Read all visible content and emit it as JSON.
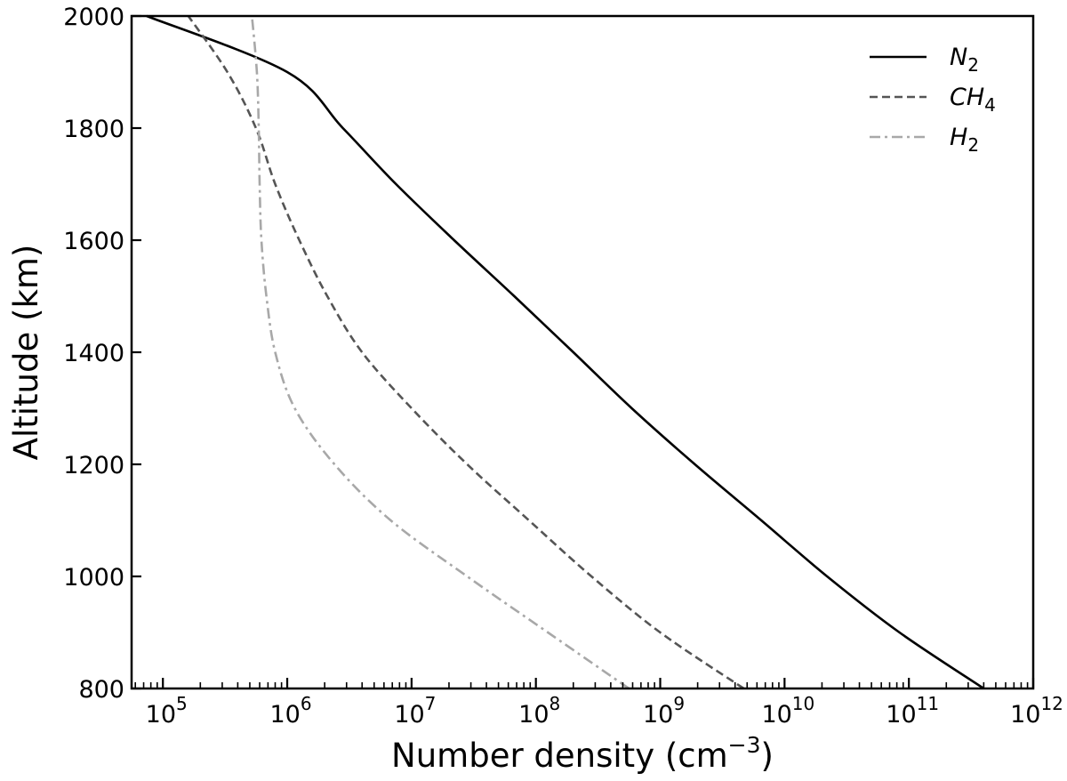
{
  "chart_data": {
    "type": "line",
    "xlabel": "Number density (cm",
    "xlabel_exponent": "−3",
    "xlabel_suffix": ")",
    "ylabel": "Altitude (km)",
    "x_scale": "log",
    "xlim": [
      56000,
      1000000000000
    ],
    "ylim": [
      800,
      2000
    ],
    "grid": false,
    "legend_position": "top-right",
    "y_ticks": [
      800,
      1000,
      1200,
      1400,
      1600,
      1800,
      2000
    ],
    "y_tick_labels": [
      "800",
      "1000",
      "1200",
      "1400",
      "1600",
      "1800",
      "2000"
    ],
    "x_major_ticks": [
      100000,
      1000000,
      10000000,
      100000000,
      1000000000,
      10000000000,
      100000000000,
      1000000000000
    ],
    "x_tick_labels": [
      {
        "base": "10",
        "exp": "5"
      },
      {
        "base": "10",
        "exp": "6"
      },
      {
        "base": "10",
        "exp": "7"
      },
      {
        "base": "10",
        "exp": "8"
      },
      {
        "base": "10",
        "exp": "9"
      },
      {
        "base": "10",
        "exp": "10"
      },
      {
        "base": "10",
        "exp": "11"
      },
      {
        "base": "10",
        "exp": "12"
      }
    ],
    "series": [
      {
        "name": "N",
        "name_sub": "2",
        "style": "solid",
        "color": "#000000",
        "points": [
          [
            400000000000,
            800
          ],
          [
            84000000000,
            900
          ],
          [
            22000000000,
            1000
          ],
          [
            6500000000,
            1100
          ],
          [
            1900000000,
            1200
          ],
          [
            590000000,
            1300
          ],
          [
            200000000,
            1400
          ],
          [
            67000000,
            1500
          ],
          [
            22000000,
            1600
          ],
          [
            7500000,
            1700
          ],
          [
            2800000,
            1800
          ],
          [
            1000000,
            1900
          ],
          [
            74000,
            2000
          ]
        ]
      },
      {
        "name": "CH",
        "name_sub": "4",
        "style": "dashed",
        "color": "#555555",
        "points": [
          [
            4700000000,
            800
          ],
          [
            1000000000,
            900
          ],
          [
            280000000,
            1000
          ],
          [
            88000000,
            1100
          ],
          [
            28000000,
            1200
          ],
          [
            10000000,
            1300
          ],
          [
            4000000,
            1400
          ],
          [
            2100000,
            1500
          ],
          [
            1250000,
            1600
          ],
          [
            800000,
            1700
          ],
          [
            560000,
            1800
          ],
          [
            330000,
            1900
          ],
          [
            160000,
            2000
          ]
        ]
      },
      {
        "name": "H",
        "name_sub": "2",
        "style": "dashdot",
        "color": "#a8a8a8",
        "points": [
          [
            560000000,
            800
          ],
          [
            125000000,
            900
          ],
          [
            28000000,
            1000
          ],
          [
            6800000,
            1100
          ],
          [
            2400000,
            1200
          ],
          [
            1150000,
            1300
          ],
          [
            800000,
            1400
          ],
          [
            680000,
            1500
          ],
          [
            620000,
            1600
          ],
          [
            600000,
            1700
          ],
          [
            590000,
            1800
          ],
          [
            570000,
            1900
          ],
          [
            520000,
            2000
          ]
        ]
      }
    ]
  }
}
